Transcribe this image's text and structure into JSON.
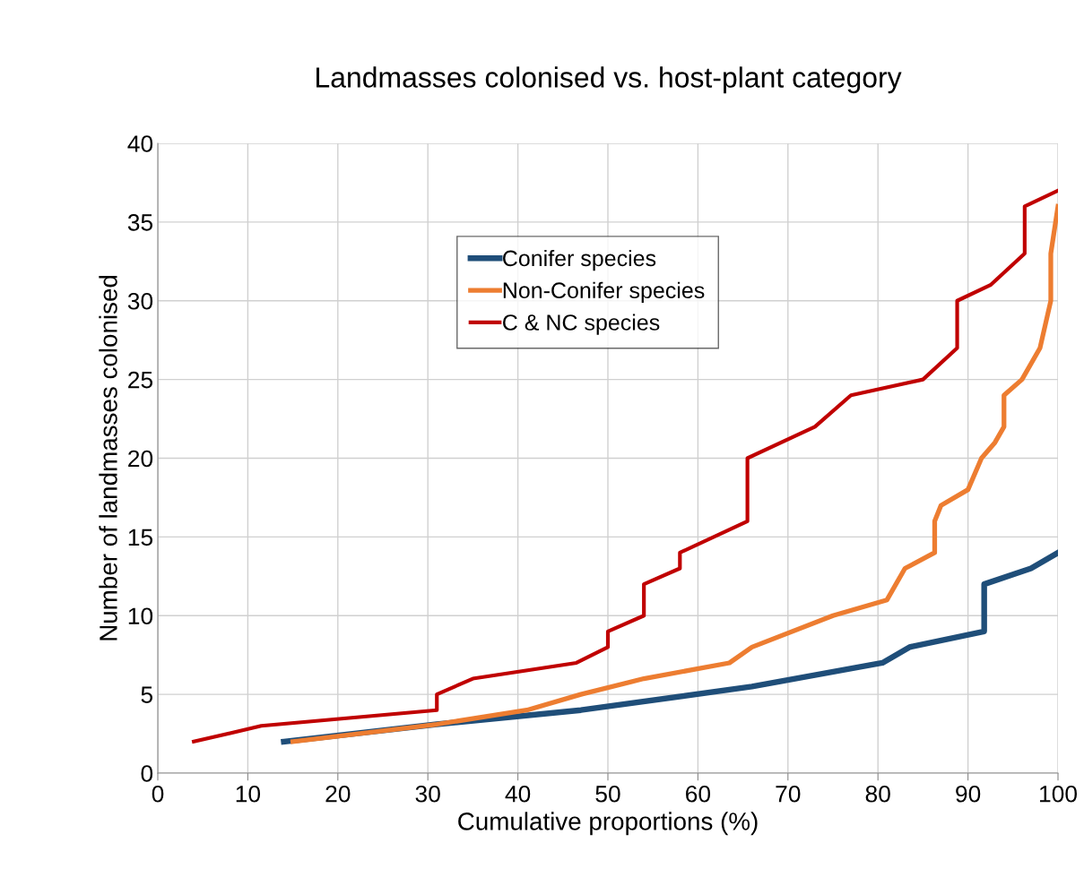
{
  "chart_data": {
    "type": "line",
    "title": "Landmasses colonised vs. host-plant category",
    "xlabel": "Cumulative proportions (%)",
    "ylabel": "Number of landmasses colonised",
    "xlim": [
      0,
      100
    ],
    "xticks": [
      0,
      10,
      20,
      30,
      40,
      50,
      60,
      70,
      80,
      90,
      100
    ],
    "ylim": [
      0,
      40
    ],
    "yticks": [
      0,
      5,
      10,
      15,
      20,
      25,
      30,
      35,
      40
    ],
    "grid": true,
    "legend": "top",
    "marker": "none",
    "line_style": "solid",
    "series": [
      {
        "name": "Conifer species",
        "color": "#1f4e79",
        "x": [
          14,
          31,
          47,
          66,
          80.5,
          83.5,
          91.8,
          91.8,
          97,
          100
        ],
        "values": [
          2,
          3.1,
          4,
          5.5,
          7,
          8,
          9,
          12,
          13,
          14
        ]
      },
      {
        "name": "Non-Conifer species",
        "color": "#ed7d31",
        "x": [
          15,
          31,
          41,
          47,
          54,
          63.5,
          66,
          75,
          81,
          83,
          86.3,
          86.3,
          87,
          90,
          91.5,
          93,
          94,
          94,
          96,
          98,
          99.2,
          99.2,
          100
        ],
        "values": [
          2,
          3.1,
          4,
          5,
          6,
          7,
          8,
          10,
          11,
          13,
          14,
          16,
          17,
          18,
          20,
          21,
          22,
          24,
          25,
          27,
          30,
          33,
          36
        ]
      },
      {
        "name": "C & NC species",
        "color": "#c00000",
        "x": [
          4,
          11.5,
          31,
          31,
          35,
          46.5,
          50,
          50,
          54,
          54,
          58,
          58,
          65.5,
          65.5,
          73,
          77,
          85,
          88.8,
          88.8,
          92.5,
          96.3,
          96.3,
          100
        ],
        "values": [
          2,
          3,
          4,
          5,
          6,
          7,
          8,
          9,
          10,
          12,
          13,
          14,
          16,
          20,
          22,
          24,
          25,
          27,
          30,
          31,
          33,
          36,
          37
        ]
      }
    ]
  }
}
